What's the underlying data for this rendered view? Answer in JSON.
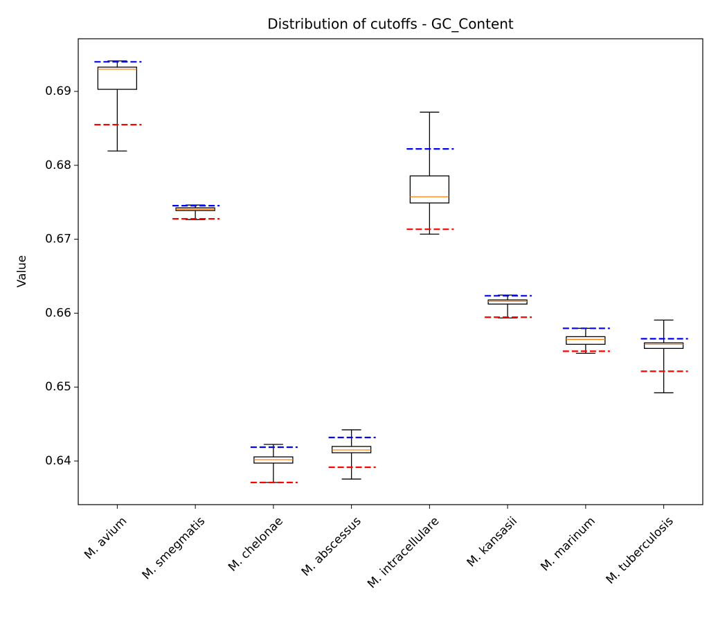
{
  "chart_data": {
    "type": "box",
    "title": "Distribution of cutoffs - GC_Content",
    "y_label": "Value",
    "categories": [
      "M. avium",
      "M. smegmatis",
      "M. chelonae",
      "M. abscessus",
      "M. intracellulare",
      "M. kansasii",
      "M. marinum",
      "M. tuberculosis"
    ],
    "whisker_low": [
      0.68194,
      0.67266,
      0.6371,
      0.63756,
      0.67069,
      0.65935,
      0.65457,
      0.64923
    ],
    "q1": [
      0.69028,
      0.67388,
      0.63972,
      0.64112,
      0.67491,
      0.66123,
      0.65579,
      0.65523
    ],
    "median": [
      0.693,
      0.67406,
      0.64019,
      0.6415,
      0.67575,
      0.6616,
      0.65645,
      0.65579
    ],
    "q3": [
      0.69328,
      0.67425,
      0.64056,
      0.64197,
      0.67857,
      0.66179,
      0.65682,
      0.65598
    ],
    "whisker_high": [
      0.69412,
      0.67463,
      0.64225,
      0.64422,
      0.68719,
      0.66245,
      0.65795,
      0.65907
    ],
    "upper_cutoff": [
      0.694,
      0.67454,
      0.64187,
      0.64318,
      0.68222,
      0.66235,
      0.65795,
      0.65654
    ],
    "lower_cutoff": [
      0.6855,
      0.67276,
      0.6371,
      0.63916,
      0.67135,
      0.65945,
      0.65485,
      0.65214
    ],
    "box_color": "#000000",
    "median_color": "#ff7f0e",
    "upper_color": "#0000ff",
    "lower_color": "#ff0000",
    "ylim": [
      0.6341,
      0.69712
    ],
    "yticks": [
      0.64,
      0.65,
      0.66,
      0.67,
      0.68,
      0.69
    ]
  }
}
